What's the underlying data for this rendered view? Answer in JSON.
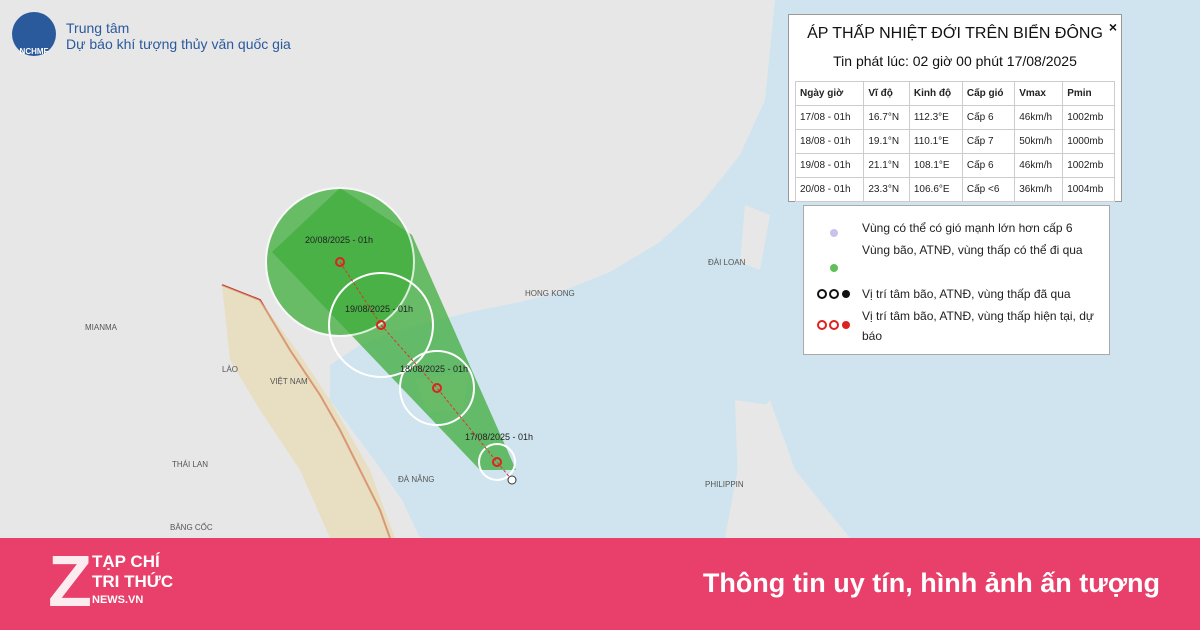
{
  "header": {
    "logo": "NCHMF",
    "line1": "Trung tâm",
    "line2": "Dự báo khí tượng thủy văn quốc gia"
  },
  "panel": {
    "title": "ÁP THẤP NHIỆT ĐỚI TRÊN BIỂN ĐÔNG",
    "close": "×",
    "subtitle": "Tin phát lúc: 02 giờ 00 phút 17/08/2025",
    "table": {
      "columns": [
        "Ngày giờ",
        "Vĩ độ",
        "Kinh độ",
        "Cấp gió",
        "Vmax",
        "Pmin"
      ],
      "rows": [
        [
          "17/08 - 01h",
          "16.7°N",
          "112.3°E",
          "Cấp 6",
          "46km/h",
          "1002mb"
        ],
        [
          "18/08 - 01h",
          "19.1°N",
          "110.1°E",
          "Cấp 7",
          "50km/h",
          "1000mb"
        ],
        [
          "19/08 - 01h",
          "21.1°N",
          "108.1°E",
          "Cấp 6",
          "46km/h",
          "1002mb"
        ],
        [
          "20/08 - 01h",
          "23.3°N",
          "106.6°E",
          "Cấp <6",
          "36km/h",
          "1004mb"
        ]
      ]
    }
  },
  "legend": {
    "items": [
      "Vùng có thể có gió mạnh lớn hơn cấp 6",
      "Vùng bão, ATNĐ, vùng thấp có thể đi qua",
      "Vị trí tâm bão, ATNĐ, vùng thấp đã qua",
      "Vị trí tâm bão, ATNĐ, vùng thấp hiện tại, dự báo"
    ]
  },
  "map": {
    "track_labels": [
      "20/08/2025 - 01h",
      "19/08/2025 - 01h",
      "18/08/2025 - 01h",
      "17/08/2025 - 01h"
    ],
    "place_labels": [
      "MIANMA",
      "LÀO",
      "VIỆT NAM",
      "THÁI LAN",
      "HONG KONG",
      "ĐÀI LOAN",
      "PHILIPPIN",
      "BĂNG CỐC",
      "ĐÀ NẴNG"
    ]
  },
  "footer": {
    "logo_letter": "Z",
    "logo_line1": "TẠP CHÍ",
    "logo_line2": "TRI THỨC",
    "logo_line3": "NEWS.VN",
    "slogan": "Thông tin uy tín, hình ảnh ấn tượng"
  }
}
